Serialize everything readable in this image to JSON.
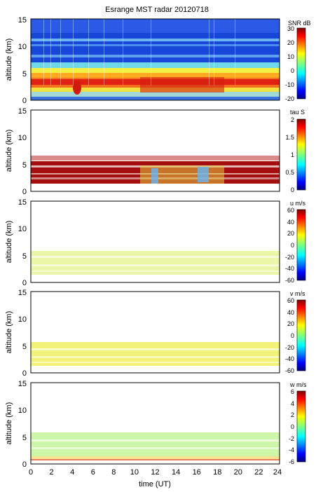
{
  "chart_data": [
    {
      "type": "heatmap",
      "title": "Esrange MST radar 20120718",
      "ylabel": "altitude (km)",
      "xlim": [
        0,
        24
      ],
      "ylim": [
        0,
        15
      ],
      "x_ticks": [
        "0",
        "2",
        "4",
        "6",
        "8",
        "10",
        "12",
        "14",
        "16",
        "18",
        "20",
        "22",
        "24"
      ],
      "y_ticks": [
        "0",
        "5",
        "10",
        "15"
      ],
      "colorbar": {
        "label": "SNR dB",
        "range": [
          -20,
          30
        ],
        "ticks": [
          "30",
          "20",
          "10",
          "0",
          "-10",
          "-20"
        ]
      }
    },
    {
      "type": "heatmap",
      "ylabel": "altitude (km)",
      "xlim": [
        0,
        24
      ],
      "ylim": [
        0,
        15
      ],
      "y_ticks": [
        "0",
        "5",
        "10",
        "15"
      ],
      "colorbar": {
        "label": "tau S",
        "range": [
          0,
          2
        ],
        "ticks": [
          "2",
          "1.5",
          "1",
          "0.5",
          "0"
        ]
      }
    },
    {
      "type": "heatmap",
      "ylabel": "altitude (km)",
      "xlim": [
        0,
        24
      ],
      "ylim": [
        0,
        15
      ],
      "y_ticks": [
        "0",
        "5",
        "10",
        "15"
      ],
      "colorbar": {
        "label": "u m/s",
        "range": [
          -60,
          60
        ],
        "ticks": [
          "60",
          "40",
          "20",
          "0",
          "-20",
          "-40",
          "-60"
        ]
      }
    },
    {
      "type": "heatmap",
      "ylabel": "altitude (km)",
      "xlim": [
        0,
        24
      ],
      "ylim": [
        0,
        15
      ],
      "y_ticks": [
        "0",
        "5",
        "10",
        "15"
      ],
      "colorbar": {
        "label": "v m/s",
        "range": [
          -60,
          60
        ],
        "ticks": [
          "60",
          "40",
          "20",
          "0",
          "-20",
          "-40",
          "-60"
        ]
      }
    },
    {
      "type": "heatmap",
      "xlabel": "time (UT)",
      "ylabel": "altitude (km)",
      "xlim": [
        0,
        24
      ],
      "ylim": [
        0,
        15
      ],
      "x_ticks": [
        "0",
        "2",
        "4",
        "6",
        "8",
        "10",
        "12",
        "14",
        "16",
        "18",
        "20",
        "22",
        "24"
      ],
      "y_ticks": [
        "0",
        "5",
        "10",
        "15"
      ],
      "colorbar": {
        "label": "w m/s",
        "range": [
          -6,
          6
        ],
        "ticks": [
          "6",
          "4",
          "2",
          "0",
          "-2",
          "-4",
          "-6"
        ]
      }
    }
  ],
  "colors": {
    "jet": [
      "#00007f",
      "#0000ff",
      "#007fff",
      "#00ffff",
      "#7fff7f",
      "#ffff00",
      "#ff7f00",
      "#ff0000",
      "#7f0000"
    ],
    "background": "#ffffff",
    "axis": "#000000"
  }
}
